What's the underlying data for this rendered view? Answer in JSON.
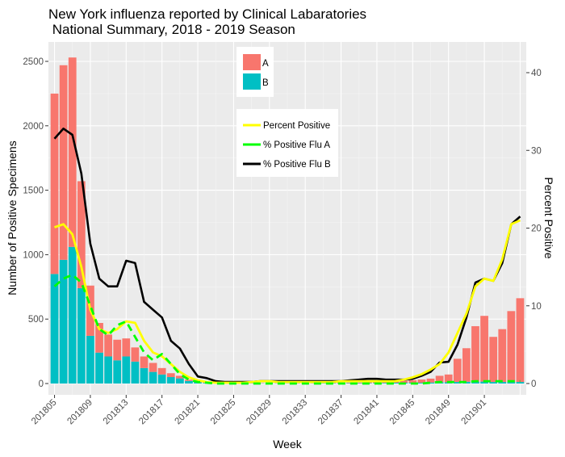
{
  "chart_data": {
    "type": "bar+line",
    "title_line1": "New York influenza reported by Clinical Labaratories",
    "title_line2": " National Summary, 2018 - 2019 Season",
    "xlabel": "Week",
    "ylabel_left": "Number of Positive Specimens",
    "ylabel_right": "Percent Positive",
    "ylim_left": [
      0,
      2600
    ],
    "ylim_right": [
      0,
      45
    ],
    "y_ticks_left": [
      0,
      500,
      1000,
      1500,
      2000,
      2500
    ],
    "y_ticks_right": [
      0,
      10,
      20,
      30,
      40
    ],
    "x_tick_labels": [
      "201805",
      "201809",
      "201813",
      "201817",
      "201821",
      "201825",
      "201829",
      "201833",
      "201837",
      "201841",
      "201845",
      "201849",
      "201901"
    ],
    "x_tick_every": 4,
    "weeks": [
      "201805",
      "201806",
      "201807",
      "201808",
      "201809",
      "201810",
      "201811",
      "201812",
      "201813",
      "201814",
      "201815",
      "201816",
      "201817",
      "201818",
      "201819",
      "201820",
      "201821",
      "201822",
      "201823",
      "201824",
      "201825",
      "201826",
      "201827",
      "201828",
      "201829",
      "201830",
      "201831",
      "201832",
      "201833",
      "201834",
      "201835",
      "201836",
      "201837",
      "201838",
      "201839",
      "201840",
      "201841",
      "201842",
      "201843",
      "201844",
      "201845",
      "201846",
      "201847",
      "201848",
      "201849",
      "201850",
      "201851",
      "201852",
      "201901",
      "201902",
      "201903",
      "201904",
      "201905"
    ],
    "bar_series": [
      {
        "name": "A",
        "color": "#F8766D",
        "values": [
          1400,
          1510,
          1470,
          830,
          390,
          230,
          170,
          160,
          140,
          110,
          90,
          70,
          50,
          30,
          20,
          10,
          10,
          5,
          3,
          2,
          2,
          2,
          2,
          2,
          2,
          2,
          2,
          2,
          2,
          2,
          3,
          3,
          4,
          4,
          4,
          5,
          6,
          8,
          10,
          15,
          20,
          25,
          30,
          50,
          60,
          180,
          260,
          430,
          510,
          350,
          410,
          550,
          650
        ]
      },
      {
        "name": "B",
        "color": "#00BFC4",
        "values": [
          850,
          960,
          1060,
          740,
          370,
          240,
          210,
          180,
          210,
          170,
          120,
          90,
          70,
          50,
          40,
          20,
          10,
          5,
          3,
          2,
          2,
          2,
          2,
          2,
          2,
          2,
          2,
          2,
          2,
          2,
          3,
          3,
          3,
          3,
          3,
          4,
          4,
          5,
          6,
          6,
          6,
          6,
          8,
          10,
          10,
          12,
          14,
          15,
          15,
          12,
          12,
          12,
          12
        ]
      }
    ],
    "line_series": [
      {
        "name": "Percent Positive",
        "color": "#FFFF00",
        "dash": "solid",
        "values": [
          20.1,
          20.5,
          19.2,
          15.0,
          9.5,
          7.0,
          6.5,
          7.0,
          8.0,
          7.8,
          5.5,
          4.0,
          3.5,
          2.5,
          1.5,
          0.8,
          0.4,
          0.2,
          0.1,
          0.1,
          0.1,
          0.1,
          0.2,
          0.3,
          0.3,
          0.2,
          0.2,
          0.2,
          0.2,
          0.2,
          0.2,
          0.2,
          0.3,
          0.3,
          0.3,
          0.3,
          0.3,
          0.3,
          0.3,
          0.5,
          0.8,
          1.2,
          1.8,
          2.5,
          4.0,
          6.5,
          9.0,
          12.5,
          13.5,
          13.2,
          16.0,
          20.5,
          21.0
        ]
      },
      {
        "name": "% Positive Flu A",
        "color": "#00FF00",
        "dash": "dashed",
        "values": [
          12.5,
          13.5,
          14.0,
          13.0,
          10.0,
          7.0,
          6.2,
          7.5,
          8.0,
          6.0,
          4.0,
          3.0,
          3.8,
          2.5,
          1.2,
          0.5,
          0.2,
          0.1,
          0.0,
          0.0,
          0.0,
          0.0,
          0.0,
          0.0,
          0.0,
          0.0,
          0.0,
          0.0,
          0.0,
          0.0,
          0.0,
          0.0,
          0.0,
          0.0,
          0.0,
          0.0,
          0.0,
          0.0,
          0.0,
          0.0,
          0.0,
          0.0,
          0.1,
          0.2,
          0.2,
          0.2,
          0.2,
          0.3,
          0.3,
          0.3,
          0.3,
          0.3,
          0.3
        ]
      },
      {
        "name": "% Positive Flu B",
        "color": "#000000",
        "dash": "solid",
        "values": [
          31.5,
          32.8,
          32.0,
          27.0,
          18.0,
          13.5,
          12.5,
          12.5,
          15.8,
          15.5,
          10.5,
          9.5,
          8.5,
          5.5,
          4.5,
          2.5,
          0.9,
          0.7,
          0.3,
          0.2,
          0.2,
          0.2,
          0.2,
          0.3,
          0.3,
          0.3,
          0.3,
          0.3,
          0.3,
          0.3,
          0.3,
          0.3,
          0.3,
          0.4,
          0.5,
          0.6,
          0.6,
          0.5,
          0.5,
          0.5,
          0.6,
          1.0,
          1.5,
          2.7,
          2.8,
          5.0,
          8.5,
          13.0,
          13.5,
          13.2,
          15.5,
          20.5,
          21.5
        ]
      }
    ],
    "legend_bar": [
      "A",
      "B"
    ],
    "legend_line": [
      "Percent Positive",
      "% Positive Flu A",
      "% Positive Flu B"
    ],
    "grid": true,
    "panel_background": "#EBEBEB"
  }
}
